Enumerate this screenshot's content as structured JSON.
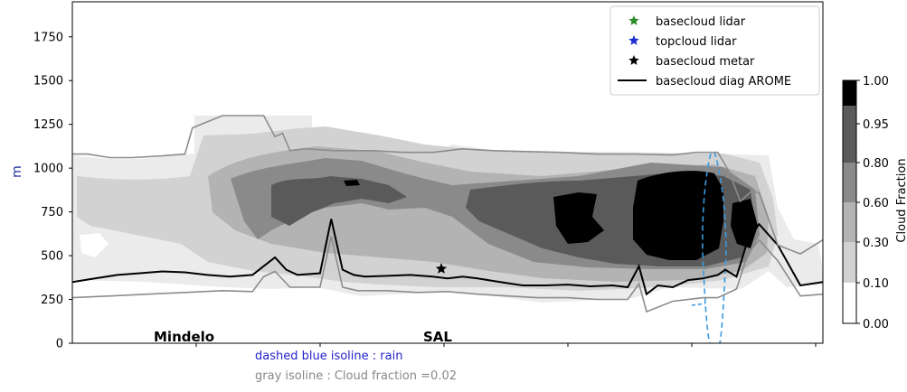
{
  "chart_data": {
    "type": "area",
    "ylabel": "m",
    "ylim": [
      0,
      1950
    ],
    "yticks": [
      0,
      250,
      500,
      750,
      1000,
      1250,
      1500,
      1750
    ],
    "x_tick_count": 6,
    "x_annotations": [
      "Mindelo",
      "SAL"
    ],
    "contour_levels": [
      0.0,
      0.1,
      0.3,
      0.6,
      0.8,
      0.95,
      1.0
    ],
    "contour_fill_colors": [
      "#ffffff",
      "#ebebeb",
      "#d2d2d2",
      "#b3b3b3",
      "#8a8a8a",
      "#5a5a5a",
      "#000000"
    ],
    "colorbar_label": "Cloud Fraction",
    "colorbar_tick_labels": [
      "0.00",
      "0.10",
      "0.30",
      "0.60",
      "0.80",
      "0.95",
      "1.00"
    ],
    "legend": {
      "placement": "top-right",
      "entries": [
        {
          "label": "basecloud lidar",
          "marker": "star",
          "color": "#2a8a2a"
        },
        {
          "label": "topcloud lidar",
          "marker": "star",
          "color": "#1f2fd0"
        },
        {
          "label": "basecloud metar",
          "marker": "star",
          "color": "#000000"
        },
        {
          "label": "basecloud diag AROME",
          "marker": "line",
          "color": "#000000"
        }
      ]
    },
    "basecloud_metar_point": {
      "x": 0.5,
      "y": 425
    },
    "notes": {
      "rain": "dashed blue isoline : rain",
      "cloud_fraction": "gray isoline : Cloud fraction =0.02"
    },
    "note_colors": {
      "rain": "#2222cc",
      "cloud_fraction": "#888888"
    },
    "series": [
      {
        "name": "basecloud diag AROME",
        "color": "#000000",
        "x": [
          0.0,
          0.03,
          0.06,
          0.09,
          0.12,
          0.15,
          0.18,
          0.21,
          0.24,
          0.255,
          0.27,
          0.285,
          0.3,
          0.33,
          0.345,
          0.36,
          0.375,
          0.39,
          0.42,
          0.45,
          0.48,
          0.5,
          0.52,
          0.54,
          0.57,
          0.6,
          0.63,
          0.66,
          0.69,
          0.72,
          0.74,
          0.755,
          0.765,
          0.78,
          0.8,
          0.82,
          0.84,
          0.86,
          0.87,
          0.885,
          0.9,
          0.915,
          0.94,
          0.97,
          1.0
        ],
        "y": [
          350,
          370,
          390,
          400,
          410,
          405,
          390,
          380,
          390,
          440,
          490,
          420,
          390,
          400,
          710,
          420,
          390,
          380,
          385,
          390,
          380,
          370,
          380,
          370,
          350,
          330,
          330,
          335,
          325,
          330,
          320,
          440,
          280,
          330,
          320,
          360,
          370,
          390,
          420,
          380,
          590,
          680,
          560,
          330,
          350
        ]
      },
      {
        "name": "gray isoline lower",
        "color": "#8c8c8c",
        "x": [
          0.0,
          0.05,
          0.1,
          0.15,
          0.2,
          0.24,
          0.255,
          0.27,
          0.29,
          0.33,
          0.345,
          0.36,
          0.38,
          0.42,
          0.46,
          0.5,
          0.54,
          0.58,
          0.62,
          0.66,
          0.7,
          0.74,
          0.755,
          0.765,
          0.8,
          0.84,
          0.86,
          0.885,
          0.9,
          0.915,
          0.94,
          0.97,
          1.0
        ],
        "y": [
          260,
          270,
          280,
          290,
          300,
          295,
          380,
          410,
          320,
          320,
          610,
          320,
          300,
          300,
          290,
          295,
          280,
          270,
          260,
          260,
          250,
          250,
          340,
          180,
          240,
          260,
          260,
          310,
          510,
          590,
          470,
          270,
          280
        ]
      },
      {
        "name": "gray isoline upper",
        "color": "#8c8c8c",
        "x": [
          0.0,
          0.02,
          0.05,
          0.08,
          0.12,
          0.15,
          0.16,
          0.2,
          0.24,
          0.255,
          0.27,
          0.28,
          0.29,
          0.31,
          0.35,
          0.4,
          0.44,
          0.48,
          0.5,
          0.52,
          0.56,
          0.6,
          0.65,
          0.7,
          0.75,
          0.8,
          0.83,
          0.86,
          0.875,
          0.89,
          0.905,
          0.915,
          0.94,
          0.97,
          1.0
        ],
        "y": [
          1080,
          1080,
          1060,
          1060,
          1070,
          1080,
          1230,
          1300,
          1300,
          1300,
          1180,
          1200,
          1100,
          1110,
          1100,
          1100,
          1090,
          1090,
          1100,
          1110,
          1100,
          1095,
          1090,
          1080,
          1080,
          1075,
          1090,
          1090,
          980,
          810,
          870,
          860,
          560,
          510,
          590
        ]
      }
    ]
  }
}
